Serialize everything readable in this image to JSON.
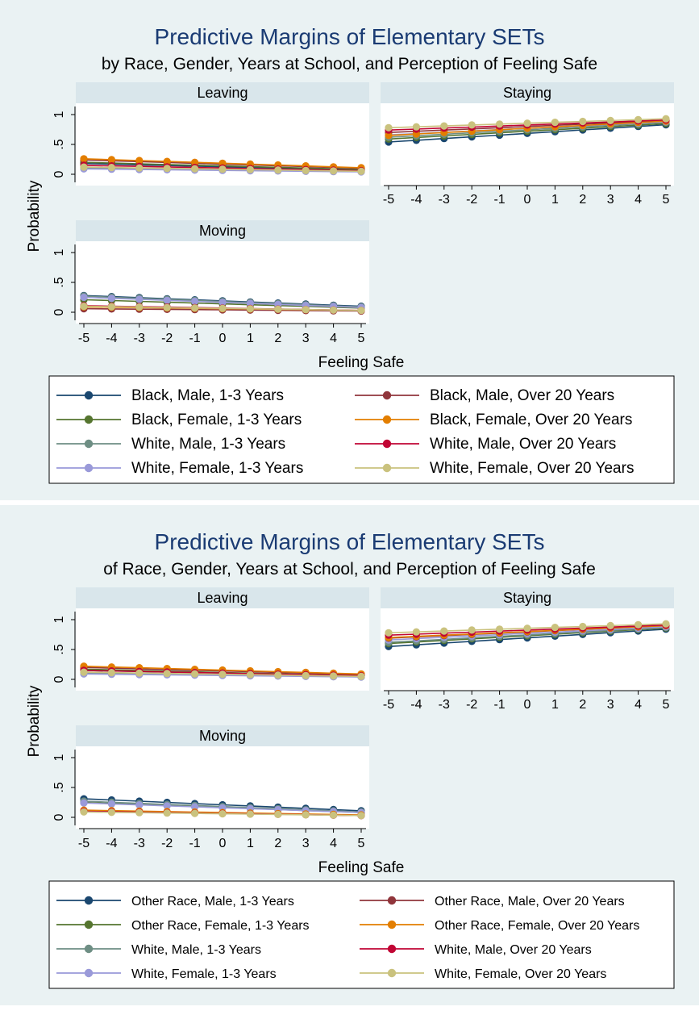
{
  "colors": {
    "title": "#1a3b73",
    "figure_background": "#eaf2f3",
    "strip_background": "#d9e6eb",
    "series": [
      "#1a476f",
      "#55752f",
      "#6e8e84",
      "#9a9ad9",
      "#90353b",
      "#e37e00",
      "#c10534",
      "#cac27e"
    ]
  },
  "chart_data": [
    {
      "type": "line",
      "title": "Predictive Margins of Elementary SETs",
      "subtitle": "by Race, Gender, Years at School, and Perception of Feeling Safe",
      "xlabel": "Feeling Safe",
      "ylabel": "Probability",
      "x": [
        -5,
        -4,
        -3,
        -2,
        -1,
        0,
        1,
        2,
        3,
        4,
        5
      ],
      "ylim": [
        0,
        1
      ],
      "yticks": [
        "0",
        ".5",
        "1"
      ],
      "legend_placement": "bottom",
      "series_names": [
        "Black, Male, 1-3 Years",
        "Black, Female, 1-3 Years",
        "White, Male, 1-3 Years",
        "White, Female, 1-3 Years",
        "Black, Male, Over 20 Years",
        "Black, Female, Over 20 Years",
        "White, Male, Over 20 Years",
        "White, Female, Over 20 Years"
      ],
      "panels": [
        {
          "label": "Leaving",
          "series": [
            {
              "start": 0.18,
              "end": 0.07
            },
            {
              "start": 0.2,
              "end": 0.08
            },
            {
              "start": 0.11,
              "end": 0.05
            },
            {
              "start": 0.09,
              "end": 0.04
            },
            {
              "start": 0.24,
              "end": 0.1
            },
            {
              "start": 0.26,
              "end": 0.11
            },
            {
              "start": 0.15,
              "end": 0.06
            },
            {
              "start": 0.12,
              "end": 0.05
            }
          ]
        },
        {
          "label": "Staying",
          "series": [
            {
              "start": 0.54,
              "end": 0.83
            },
            {
              "start": 0.59,
              "end": 0.85
            },
            {
              "start": 0.62,
              "end": 0.87
            },
            {
              "start": 0.66,
              "end": 0.88
            },
            {
              "start": 0.7,
              "end": 0.9
            },
            {
              "start": 0.65,
              "end": 0.89
            },
            {
              "start": 0.74,
              "end": 0.91
            },
            {
              "start": 0.78,
              "end": 0.93
            }
          ]
        },
        {
          "label": "Moving",
          "series": [
            {
              "start": 0.28,
              "end": 0.1
            },
            {
              "start": 0.21,
              "end": 0.07
            },
            {
              "start": 0.27,
              "end": 0.09
            },
            {
              "start": 0.25,
              "end": 0.08
            },
            {
              "start": 0.06,
              "end": 0.02
            },
            {
              "start": 0.09,
              "end": 0.03
            },
            {
              "start": 0.11,
              "end": 0.03
            },
            {
              "start": 0.1,
              "end": 0.03
            }
          ]
        }
      ]
    },
    {
      "type": "line",
      "title": "Predictive Margins of Elementary SETs",
      "subtitle": "of Race, Gender, Years at School, and Perception of Feeling Safe",
      "xlabel": "Feeling Safe",
      "ylabel": "Probability",
      "x": [
        -5,
        -4,
        -3,
        -2,
        -1,
        0,
        1,
        2,
        3,
        4,
        5
      ],
      "ylim": [
        0,
        1
      ],
      "yticks": [
        "0",
        ".5",
        "1"
      ],
      "legend_placement": "bottom",
      "series_names": [
        "Other Race, Male, 1-3 Years",
        "Other Race, Female, 1-3 Years",
        "White, Male, 1-3 Years",
        "White, Female, 1-3 Years",
        "Other Race, Male, Over 20 Years",
        "Other Race, Female, Over 20 Years",
        "White, Male, Over 20 Years",
        "White, Female, Over 20 Years"
      ],
      "panels": [
        {
          "label": "Leaving",
          "series": [
            {
              "start": 0.15,
              "end": 0.06
            },
            {
              "start": 0.17,
              "end": 0.06
            },
            {
              "start": 0.11,
              "end": 0.04
            },
            {
              "start": 0.09,
              "end": 0.04
            },
            {
              "start": 0.2,
              "end": 0.08
            },
            {
              "start": 0.22,
              "end": 0.09
            },
            {
              "start": 0.15,
              "end": 0.06
            },
            {
              "start": 0.12,
              "end": 0.05
            }
          ]
        },
        {
          "label": "Staying",
          "series": [
            {
              "start": 0.55,
              "end": 0.84
            },
            {
              "start": 0.6,
              "end": 0.86
            },
            {
              "start": 0.62,
              "end": 0.87
            },
            {
              "start": 0.66,
              "end": 0.88
            },
            {
              "start": 0.69,
              "end": 0.9
            },
            {
              "start": 0.7,
              "end": 0.9
            },
            {
              "start": 0.74,
              "end": 0.91
            },
            {
              "start": 0.78,
              "end": 0.93
            }
          ]
        },
        {
          "label": "Moving",
          "series": [
            {
              "start": 0.31,
              "end": 0.11
            },
            {
              "start": 0.25,
              "end": 0.08
            },
            {
              "start": 0.27,
              "end": 0.09
            },
            {
              "start": 0.24,
              "end": 0.08
            },
            {
              "start": 0.11,
              "end": 0.03
            },
            {
              "start": 0.12,
              "end": 0.04
            },
            {
              "start": 0.1,
              "end": 0.03
            },
            {
              "start": 0.09,
              "end": 0.03
            }
          ]
        }
      ]
    }
  ]
}
